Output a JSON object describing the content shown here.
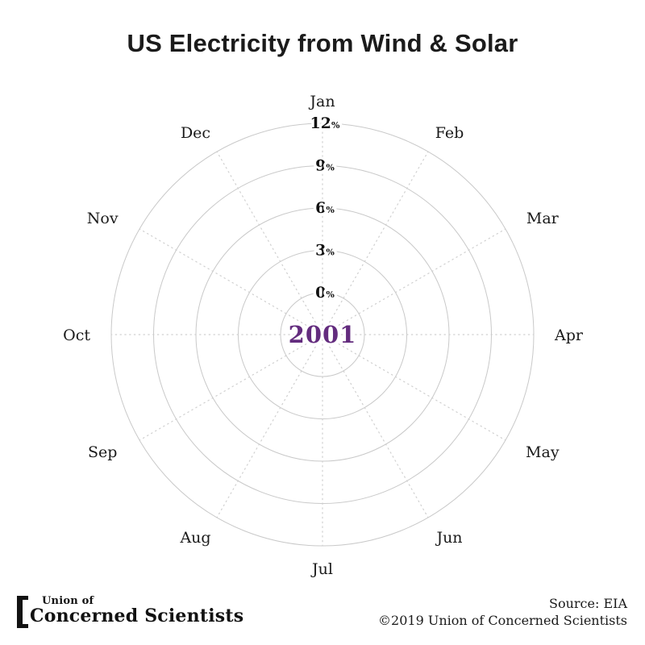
{
  "chart_data": {
    "type": "polar-line",
    "title": "US Electricity from Wind & Solar",
    "categories": [
      "Jan",
      "Feb",
      "Mar",
      "Apr",
      "May",
      "Jun",
      "Jul",
      "Aug",
      "Sep",
      "Oct",
      "Nov",
      "Dec"
    ],
    "radial_axis": {
      "ticks": [
        0,
        3,
        6,
        9,
        12
      ],
      "unit_suffix": "%",
      "range": [
        0,
        12
      ],
      "tick_position": "vertical-top"
    },
    "center_label": {
      "text": "2001",
      "color": "#632c7e"
    },
    "series": [
      {
        "name": "2001",
        "values": [
          0,
          0,
          0,
          0,
          0,
          0,
          0,
          0,
          0,
          0,
          0,
          0
        ],
        "color": "#632c7e"
      }
    ],
    "grid": {
      "rings": "solid",
      "spokes": "dotted",
      "ring_color": "#c9c9c9",
      "spoke_color": "#d0d0d0"
    },
    "text_color": "#1a1a1a",
    "legend_position": "none"
  },
  "footer": {
    "logo": {
      "line1": "Union of",
      "line2": "Concerned Scientists"
    },
    "source": "Source: EIA",
    "copyright": "©2019 Union of Concerned Scientists"
  }
}
